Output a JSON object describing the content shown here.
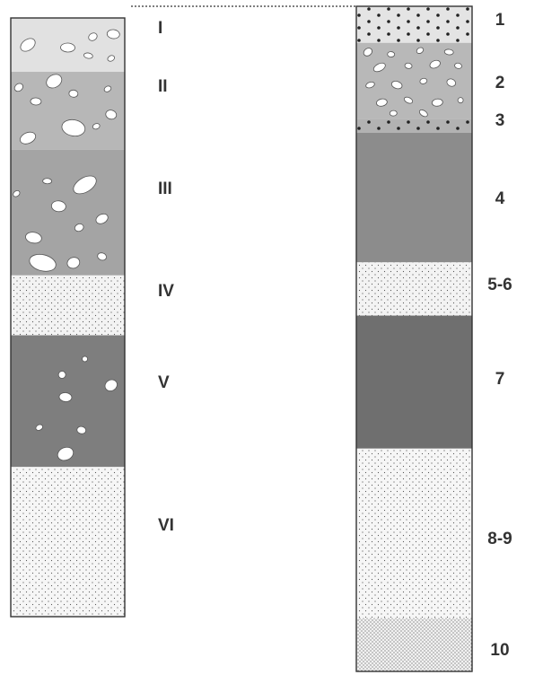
{
  "left_column": {
    "layers": [
      {
        "label": "I",
        "fill": "#e1e1e1",
        "texture": "clasts",
        "top": 0,
        "bottom": 0.09
      },
      {
        "label": "II",
        "fill": "#b7b7b7",
        "texture": "clasts",
        "top": 0.09,
        "bottom": 0.22
      },
      {
        "label": "III",
        "fill": "#a4a4a4",
        "texture": "clasts",
        "top": 0.22,
        "bottom": 0.43
      },
      {
        "label": "IV",
        "fill": "#f3f3f3",
        "texture": "fine-dots",
        "top": 0.43,
        "bottom": 0.53
      },
      {
        "label": "V",
        "fill": "#7e7e7e",
        "texture": "clasts",
        "top": 0.53,
        "bottom": 0.75
      },
      {
        "label": "VI",
        "fill": "#f6f6f6",
        "texture": "fine-dots",
        "top": 0.75,
        "bottom": 1.0
      }
    ]
  },
  "right_column": {
    "layers": [
      {
        "label": "1",
        "fill": "#e4e4e4",
        "texture": "black-dots",
        "top": 0,
        "bottom": 0.055
      },
      {
        "label": "2",
        "fill": "#b8b8b8",
        "texture": "clasts",
        "top": 0.055,
        "bottom": 0.17
      },
      {
        "label": "3",
        "fill": "#b2b2b2",
        "texture": "black-dots",
        "top": 0.17,
        "bottom": 0.19
      },
      {
        "label": "4",
        "fill": "#8c8c8c",
        "texture": "none",
        "top": 0.19,
        "bottom": 0.385
      },
      {
        "label": "5-6",
        "fill": "#f3f3f3",
        "texture": "fine-dots",
        "top": 0.385,
        "bottom": 0.465
      },
      {
        "label": "7",
        "fill": "#6f6f6f",
        "texture": "none",
        "top": 0.465,
        "bottom": 0.665
      },
      {
        "label": "8-9",
        "fill": "#f6f6f6",
        "texture": "fine-dots",
        "top": 0.665,
        "bottom": 0.92
      },
      {
        "label": "10",
        "fill": "#f1f1f1",
        "texture": "dense-dots",
        "top": 0.92,
        "bottom": 1.0
      }
    ]
  },
  "colors": {
    "outline": "#333333",
    "clast": "#ffffff",
    "dot": "#222222"
  }
}
